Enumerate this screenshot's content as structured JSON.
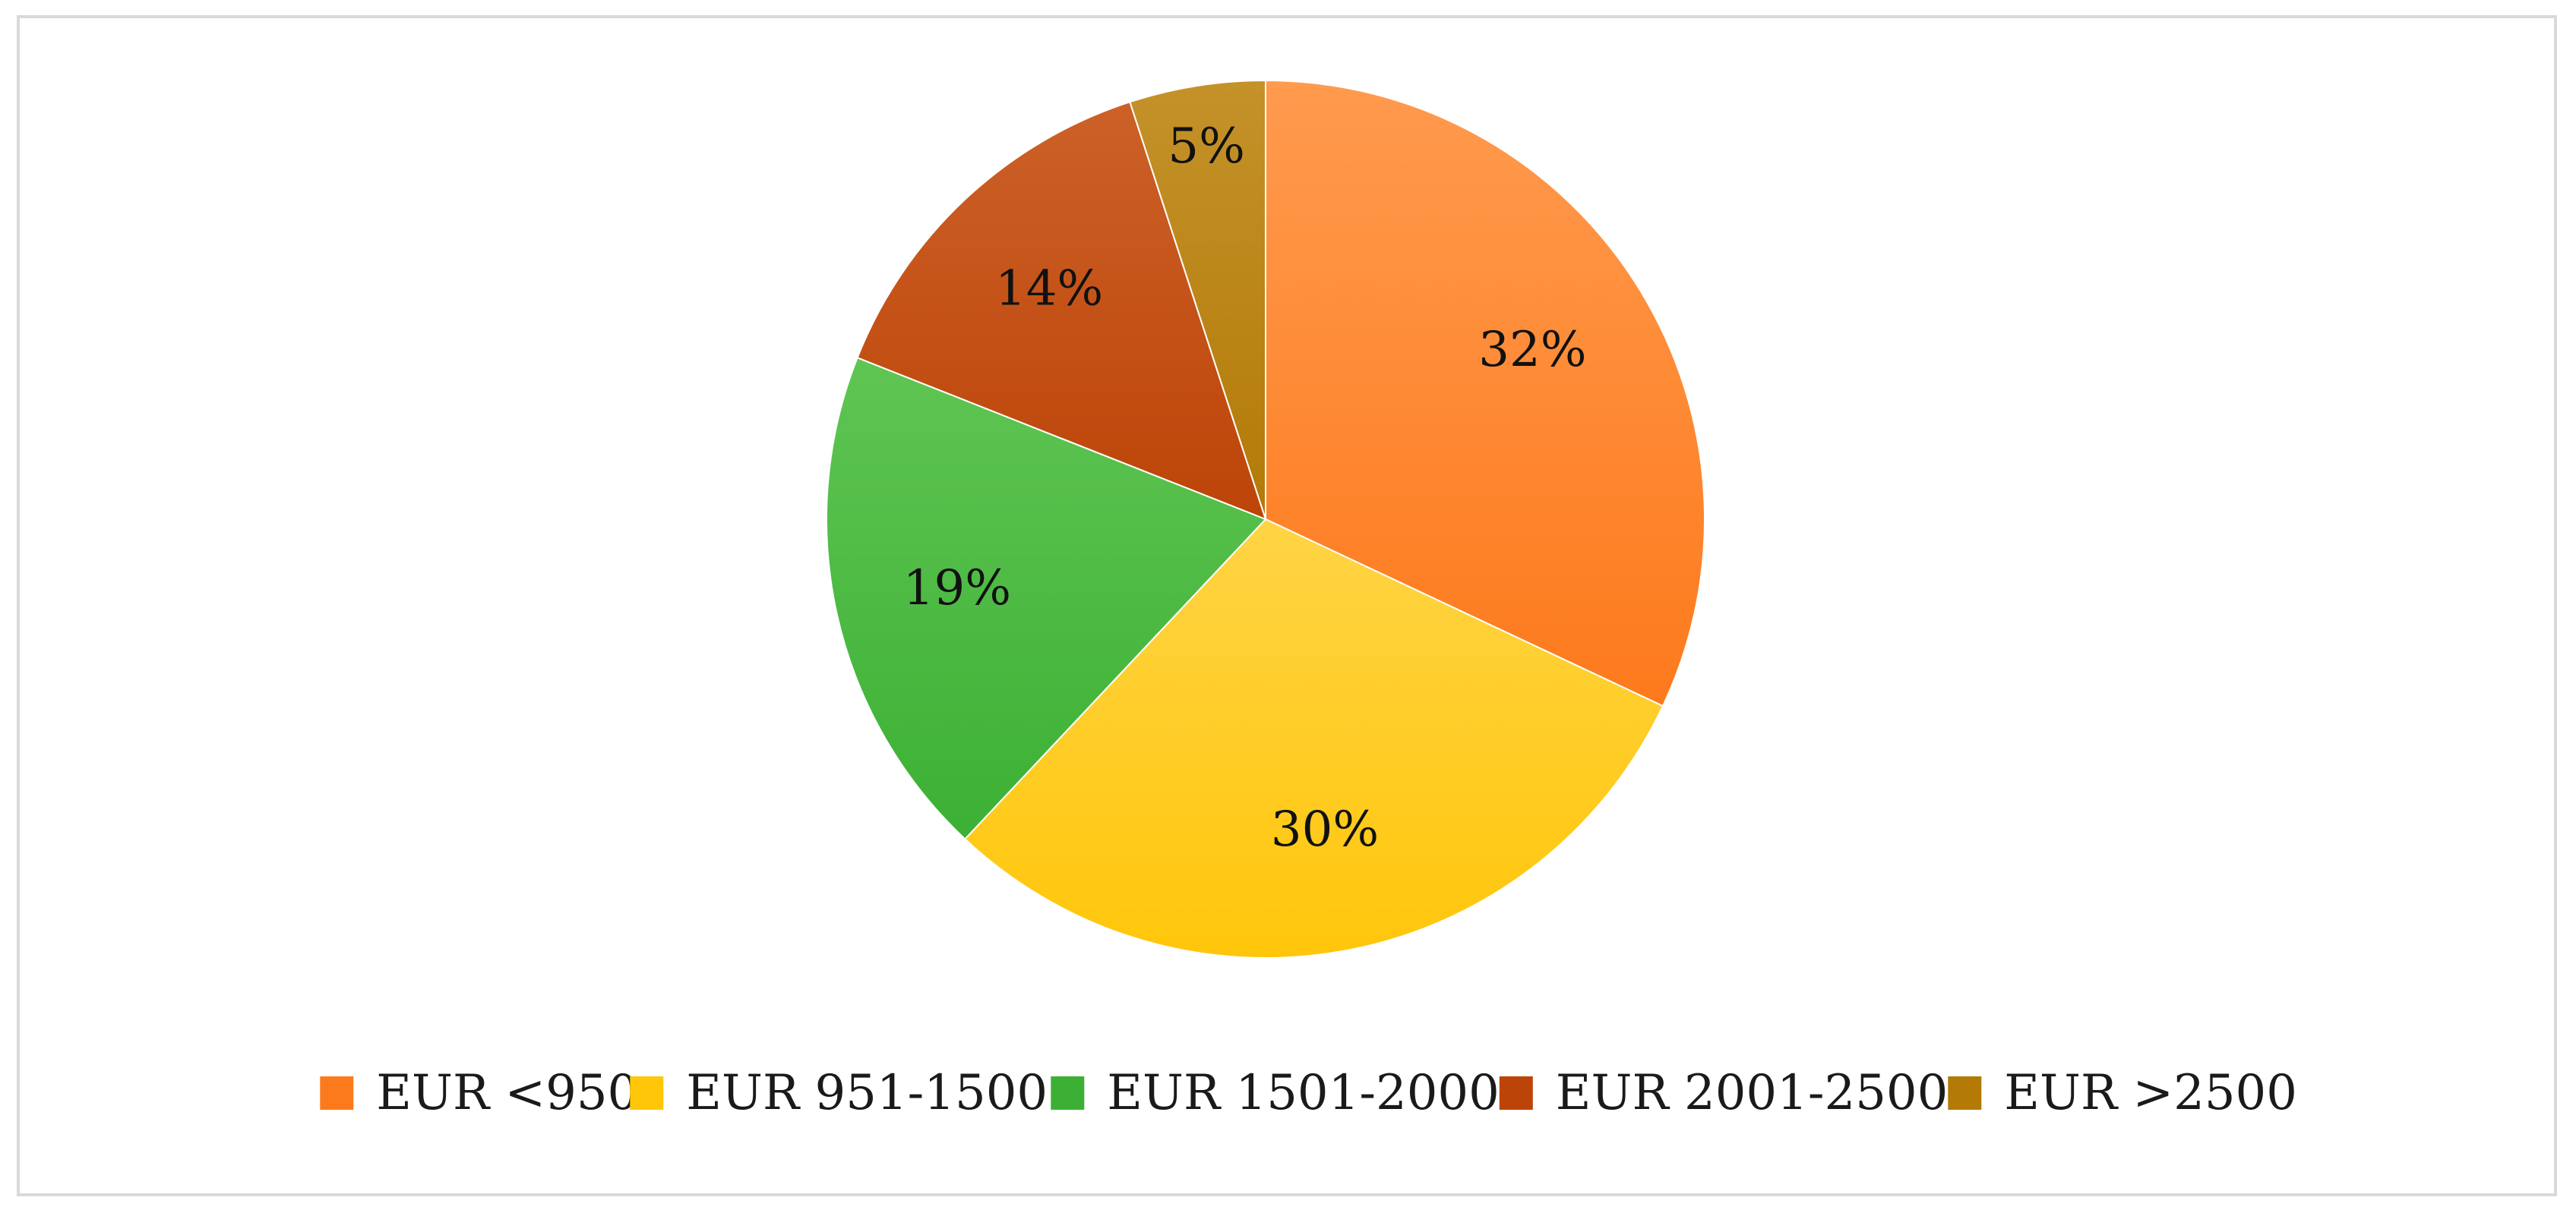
{
  "chart_data": {
    "type": "pie",
    "title": "",
    "categories": [
      "EUR <950",
      "EUR 951-1500",
      "EUR 1501-2000",
      "EUR 2001-2500",
      "EUR >2500"
    ],
    "values": [
      32,
      30,
      19,
      14,
      5
    ],
    "labels": [
      "32%",
      "30%",
      "19%",
      "14%",
      "5%"
    ],
    "unit": "%",
    "start_angle_deg": 0,
    "direction": "clockwise",
    "legend_position": "bottom",
    "colors": [
      "#fd7a1c",
      "#ffc60a",
      "#3cb034",
      "#bd4408",
      "#b37a06"
    ],
    "colors_light": [
      "#ff9a4e",
      "#ffd445",
      "#5fc553",
      "#cc6128",
      "#c4922a"
    ]
  }
}
